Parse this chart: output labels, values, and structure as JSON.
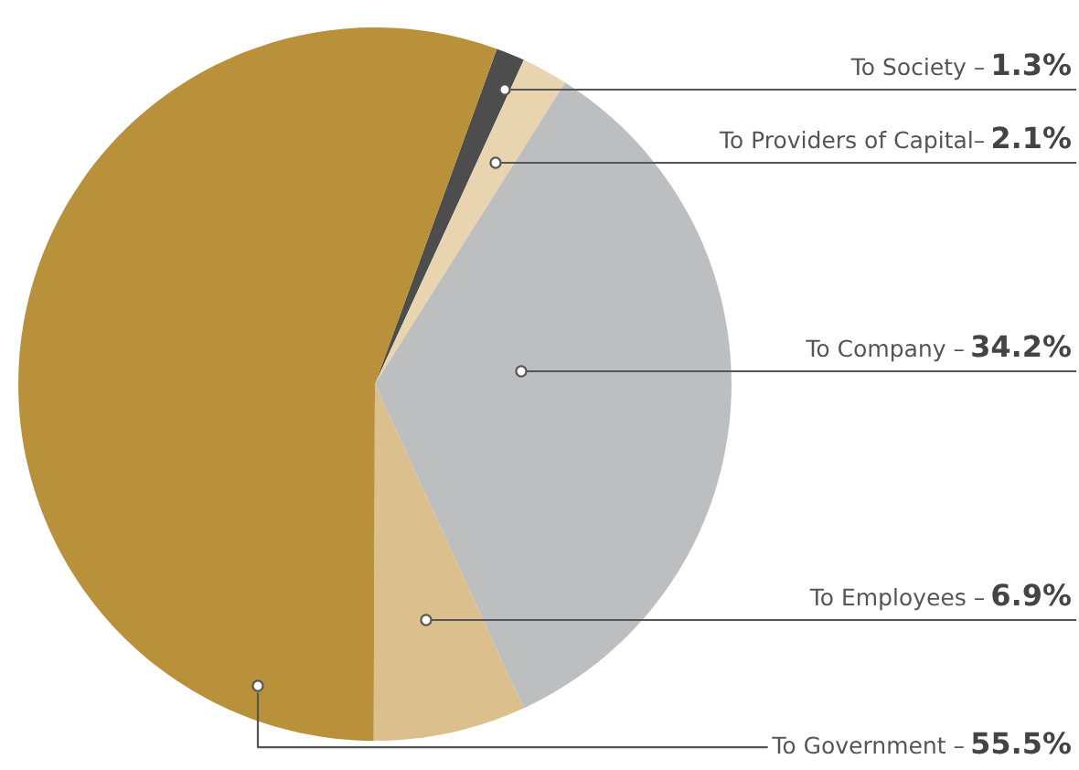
{
  "chart_data": {
    "type": "pie",
    "categories": [
      "To Society –",
      "To Providers of Capital–",
      "To Company –",
      "To Employees –",
      "To Government –"
    ],
    "values": [
      1.3,
      2.1,
      34.2,
      6.9,
      55.5
    ],
    "value_labels": [
      "1.3%",
      "2.1%",
      "34.2%",
      "6.9%",
      "55.5%"
    ],
    "colors": [
      "#4d4d4d",
      "#e8d5b0",
      "#bdbebf",
      "#dbbf8c",
      "#b8913a"
    ]
  }
}
